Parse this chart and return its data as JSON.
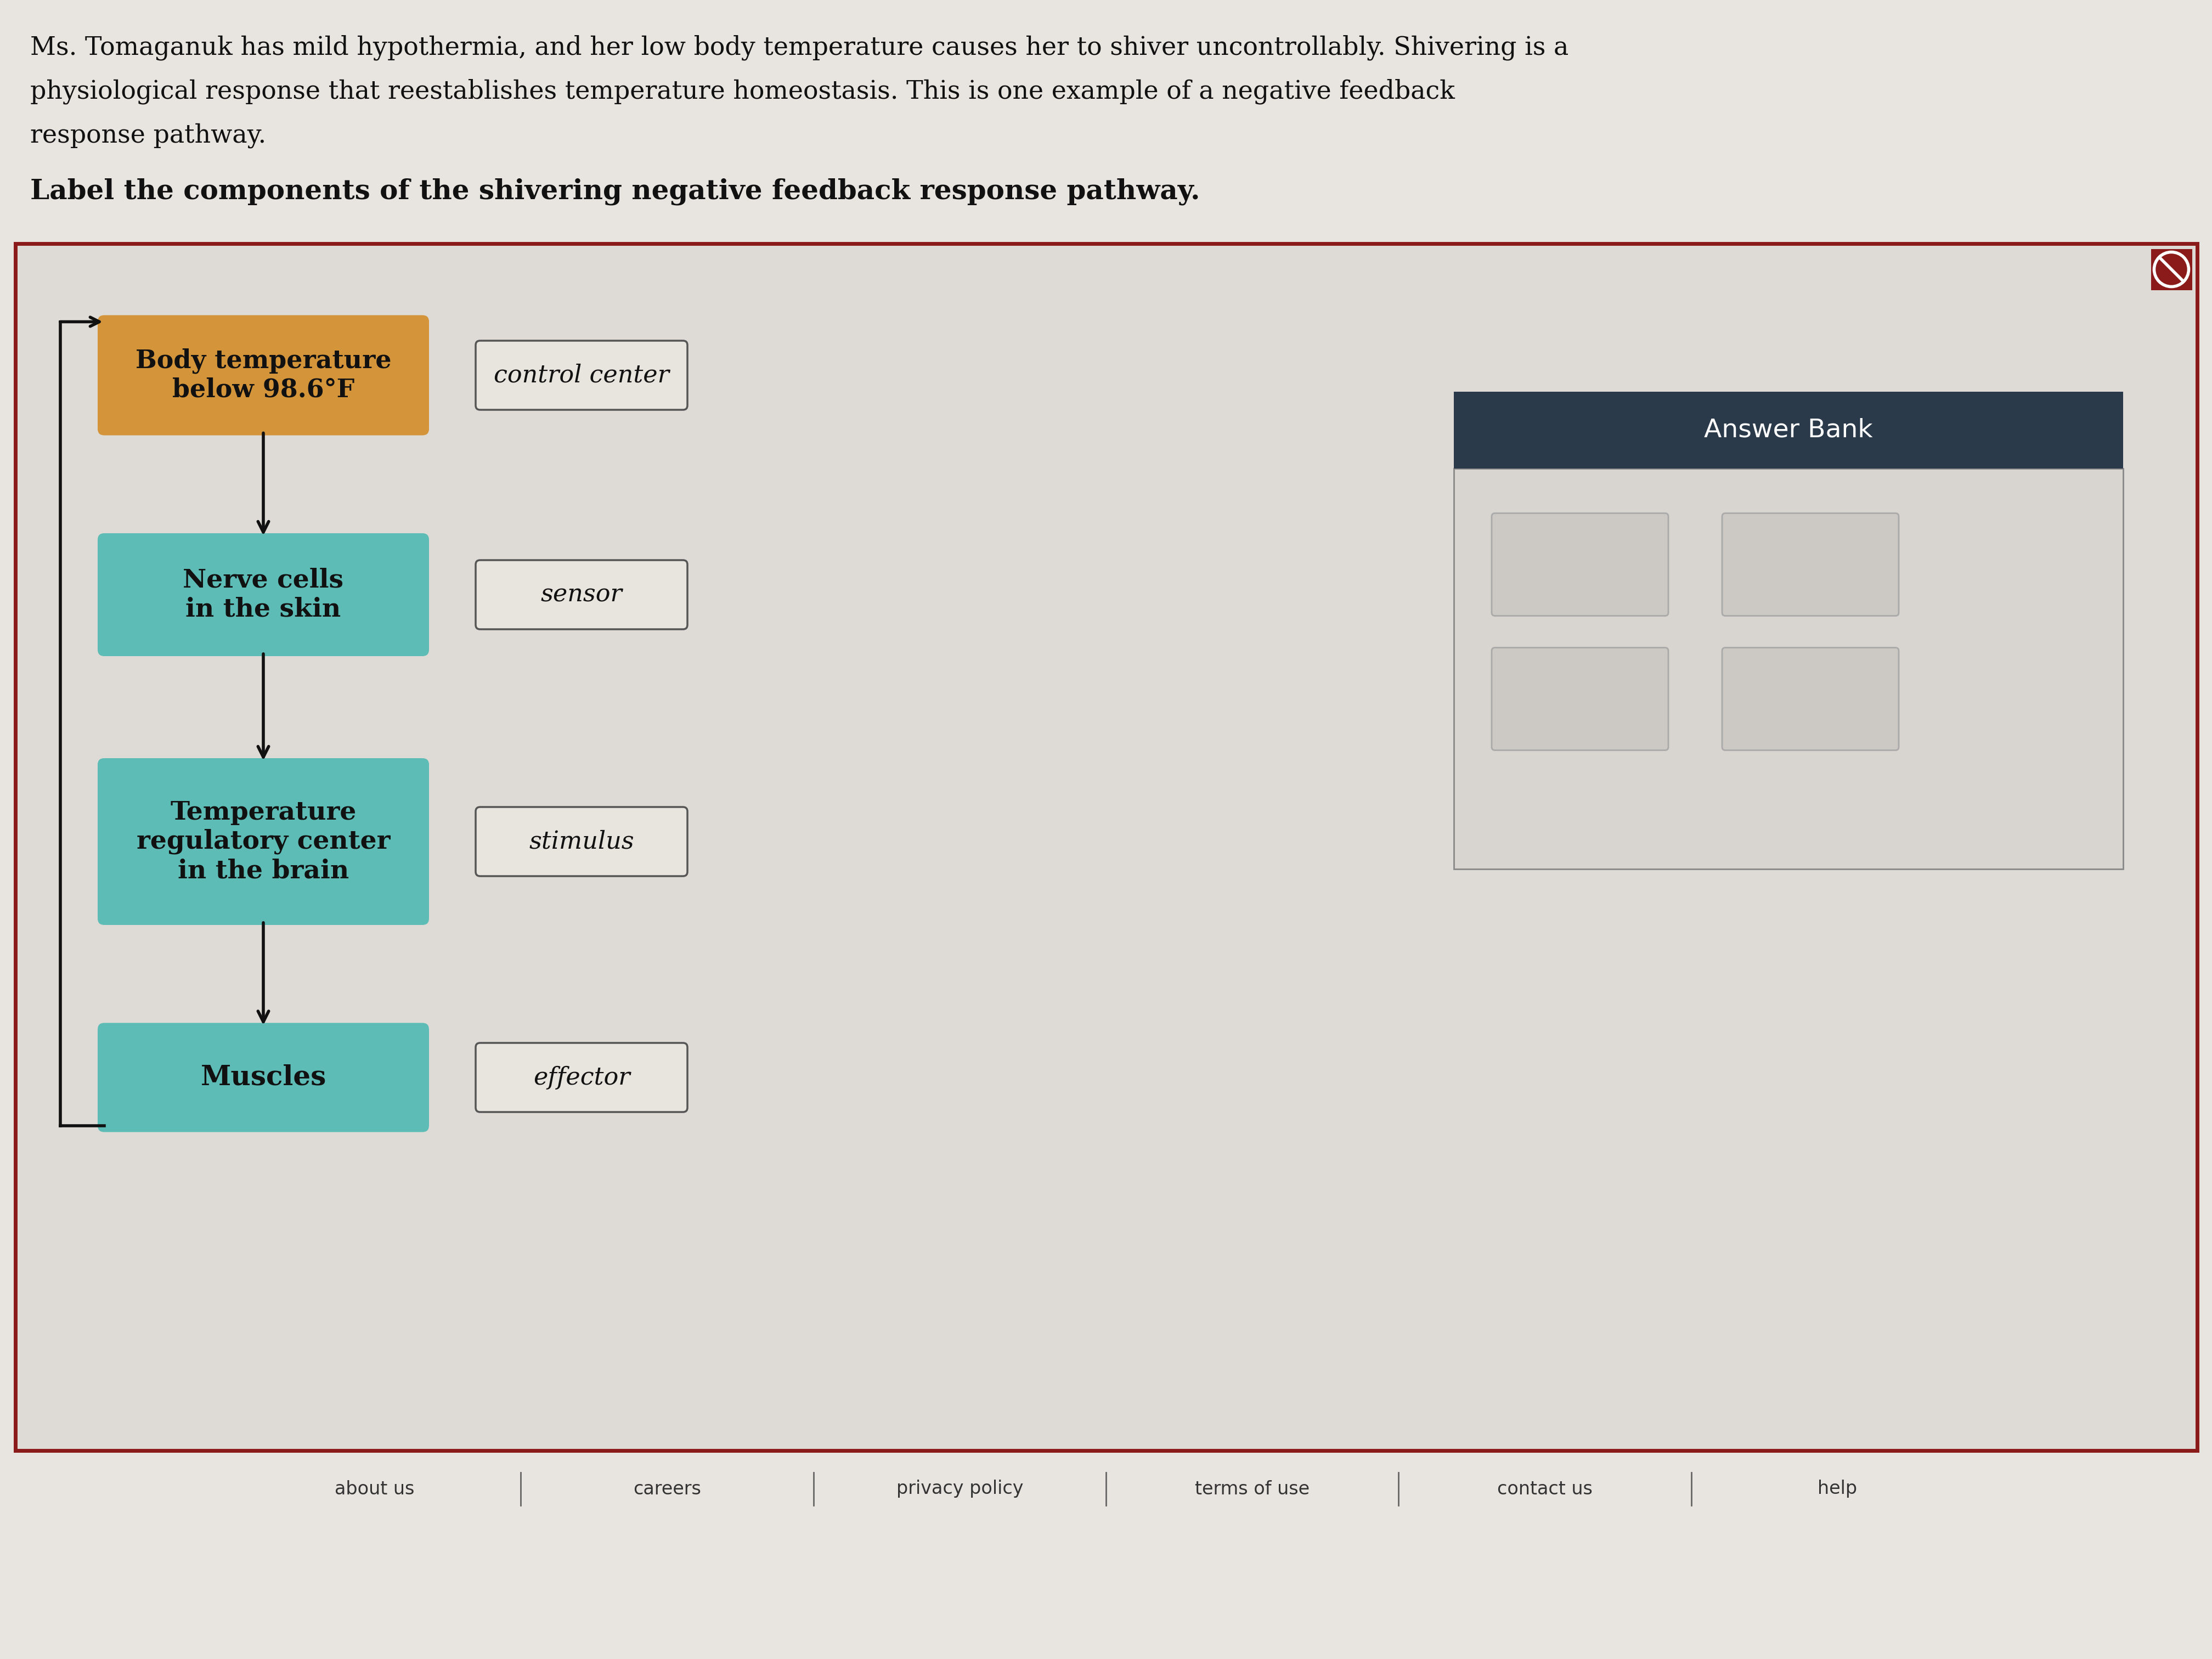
{
  "page_bg": "#e8e5e0",
  "title_text_line1": "Ms. Tomaganuk has mild hypothermia, and her low body temperature causes her to shiver uncontrollably. Shivering is a",
  "title_text_line2": "physiological response that reestablishes temperature homeostasis. This is one example of a negative feedback",
  "title_text_line3": "response pathway.",
  "label_text": "Label the components of the shivering negative feedback response pathway.",
  "diagram_bg": "#dedad5",
  "diagram_border": "#8b1a1a",
  "box1_text": "Body temperature\nbelow 98.6°F",
  "box1_color": "#d4943a",
  "box2_text": "Nerve cells\nin the skin",
  "box2_color": "#5dbdb6",
  "box3_text": "Temperature\nregulatory center\nin the brain",
  "box3_color": "#5dbdb6",
  "box4_text": "Muscles",
  "box4_color": "#5dbdb6",
  "label_boxes": [
    "control center",
    "sensor",
    "stimulus",
    "effector"
  ],
  "answer_bank_header": "Answer Bank",
  "answer_bank_header_color": "#2b3a4a",
  "answer_bank_body_bg": "#d8d4cf",
  "footer_items": [
    "about us",
    "careers",
    "privacy policy",
    "terms of use",
    "contact us",
    "help"
  ],
  "reset_icon_color": "#8b1a1a"
}
